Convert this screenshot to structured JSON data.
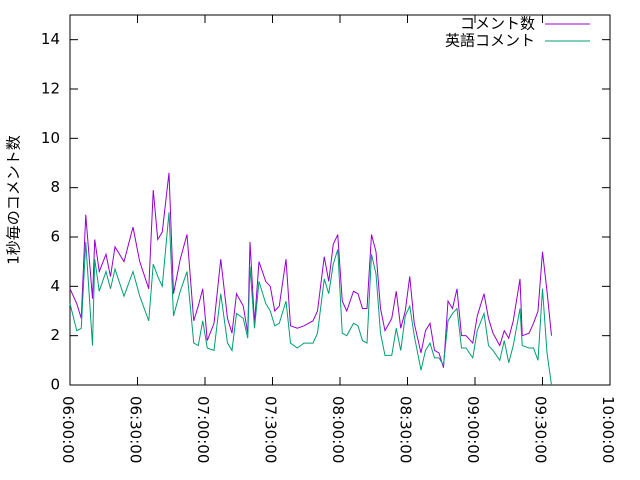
{
  "chart_data": {
    "type": "line",
    "ylabel": "1秒毎のコメント数",
    "x": [
      "06:00:00",
      "06:03:00",
      "06:05:00",
      "06:07:00",
      "06:10:00",
      "06:11:00",
      "06:13:00",
      "06:16:00",
      "06:18:00",
      "06:20:00",
      "06:24:00",
      "06:28:00",
      "06:31:00",
      "06:35:00",
      "06:37:00",
      "06:39:00",
      "06:41:00",
      "06:44:00",
      "06:46:00",
      "06:49:00",
      "06:52:00",
      "06:55:00",
      "06:57:00",
      "06:59:00",
      "07:01:00",
      "07:04:00",
      "07:07:00",
      "07:10:00",
      "07:12:00",
      "07:14:00",
      "07:17:00",
      "07:19:00",
      "07:20:00",
      "07:22:00",
      "07:24:00",
      "07:27:00",
      "07:29:00",
      "07:31:00",
      "07:33:00",
      "07:36:00",
      "07:38:00",
      "07:41:00",
      "07:44:00",
      "07:48:00",
      "07:50:00",
      "07:53:00",
      "07:55:00",
      "07:57:00",
      "07:59:00",
      "08:01:00",
      "08:03:00",
      "08:06:00",
      "08:08:00",
      "08:10:00",
      "08:12:00",
      "08:14:00",
      "08:16:00",
      "08:18:00",
      "08:20:00",
      "08:23:00",
      "08:25:00",
      "08:27:00",
      "08:29:00",
      "08:31:00",
      "08:33:00",
      "08:36:00",
      "08:38:00",
      "08:40:00",
      "08:42:00",
      "08:44:00",
      "08:46:00",
      "08:48:00",
      "08:50:00",
      "08:52:00",
      "08:54:00",
      "08:56:00",
      "08:59:00",
      "09:01:00",
      "09:04:00",
      "09:06:00",
      "09:08:00",
      "09:11:00",
      "09:13:00",
      "09:15:00",
      "09:17:00",
      "09:20:00",
      "09:21:00",
      "09:24:00",
      "09:26:00",
      "09:28:00",
      "09:30:00",
      "09:32:00",
      "09:34:00"
    ],
    "series": [
      {
        "name": "コメント数",
        "color": "#9400d3",
        "values": [
          3.9,
          3.3,
          2.7,
          6.9,
          3.5,
          5.9,
          4.6,
          5.3,
          4.4,
          5.6,
          5.0,
          6.4,
          5.0,
          3.9,
          7.9,
          5.9,
          6.2,
          8.6,
          3.7,
          5.1,
          6.1,
          2.6,
          3.2,
          3.9,
          1.8,
          2.5,
          5.1,
          2.7,
          2.1,
          3.7,
          3.2,
          2.1,
          5.8,
          2.5,
          5.0,
          4.2,
          4.0,
          3.0,
          3.2,
          5.1,
          2.4,
          2.3,
          2.4,
          2.6,
          3.0,
          5.2,
          4.2,
          5.7,
          6.1,
          3.4,
          3.0,
          3.8,
          3.7,
          3.1,
          3.1,
          6.1,
          5.4,
          3.1,
          2.2,
          2.7,
          3.8,
          2.3,
          3.0,
          4.4,
          2.5,
          1.3,
          2.2,
          2.5,
          1.4,
          1.3,
          0.7,
          3.4,
          3.1,
          3.9,
          2.0,
          2.0,
          1.7,
          2.8,
          3.7,
          2.7,
          2.1,
          1.6,
          2.2,
          1.9,
          2.6,
          4.3,
          2.0,
          2.1,
          2.5,
          3.0,
          5.4,
          3.8,
          2.0
        ]
      },
      {
        "name": "英語コメント",
        "color": "#009e73",
        "values": [
          3.3,
          2.2,
          2.3,
          5.8,
          1.6,
          5.1,
          3.8,
          4.6,
          3.9,
          4.7,
          3.6,
          4.6,
          3.6,
          2.6,
          4.9,
          4.4,
          4.0,
          7.0,
          2.8,
          3.8,
          4.6,
          1.7,
          1.6,
          2.6,
          1.5,
          1.4,
          3.7,
          1.7,
          1.4,
          2.9,
          2.7,
          1.9,
          4.8,
          2.3,
          4.2,
          3.3,
          3.0,
          2.4,
          2.5,
          3.4,
          1.7,
          1.5,
          1.7,
          1.7,
          2.1,
          4.3,
          3.7,
          4.9,
          5.5,
          2.1,
          2.0,
          2.5,
          2.4,
          1.8,
          1.7,
          5.3,
          4.5,
          2.1,
          1.2,
          1.2,
          2.3,
          1.4,
          2.8,
          3.2,
          2.0,
          0.6,
          1.4,
          1.7,
          1.1,
          1.1,
          0.8,
          2.6,
          2.9,
          3.1,
          1.5,
          1.5,
          1.1,
          2.2,
          2.9,
          1.6,
          1.4,
          1.0,
          1.8,
          0.9,
          1.6,
          3.1,
          1.6,
          1.5,
          1.5,
          1.0,
          3.9,
          1.3,
          0
        ]
      }
    ],
    "xlim": [
      "06:00:00",
      "10:00:00"
    ],
    "xticks": [
      "06:00:00",
      "06:30:00",
      "07:00:00",
      "07:30:00",
      "08:00:00",
      "08:30:00",
      "09:00:00",
      "09:30:00",
      "10:00:00"
    ],
    "ylim": [
      0,
      15
    ],
    "yticks": [
      0,
      2,
      4,
      6,
      8,
      10,
      12,
      14
    ],
    "grid": false,
    "legend": "top-right"
  }
}
